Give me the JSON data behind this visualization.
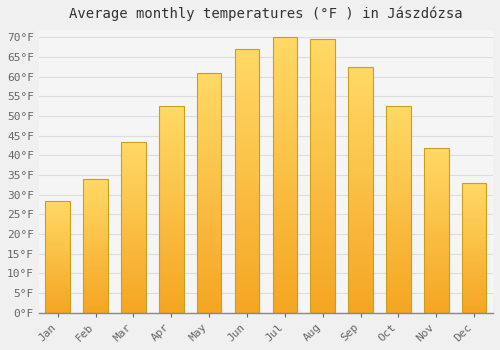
{
  "title": "Average monthly temperatures (°F ) in Jászdózsa",
  "months": [
    "Jan",
    "Feb",
    "Mar",
    "Apr",
    "May",
    "Jun",
    "Jul",
    "Aug",
    "Sep",
    "Oct",
    "Nov",
    "Dec"
  ],
  "values": [
    28.5,
    34.0,
    43.5,
    52.5,
    61.0,
    67.0,
    70.0,
    69.5,
    62.5,
    52.5,
    42.0,
    33.0
  ],
  "bar_color_bottom": "#F5A623",
  "bar_color_top": "#FFD966",
  "bar_edge_color": "#C8A020",
  "background_color": "#F0F0F0",
  "plot_bg_color": "#F5F5F5",
  "grid_color": "#DDDDDD",
  "text_color": "#666666",
  "ylim": [
    0,
    72
  ],
  "yticks": [
    0,
    5,
    10,
    15,
    20,
    25,
    30,
    35,
    40,
    45,
    50,
    55,
    60,
    65,
    70
  ],
  "title_fontsize": 10,
  "tick_fontsize": 8,
  "bar_width": 0.65
}
